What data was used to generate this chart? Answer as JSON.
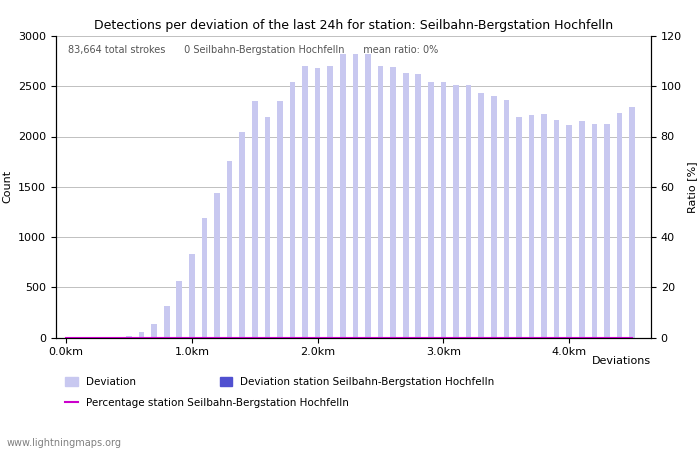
{
  "title": "Detections per deviation of the last 24h for station: Seilbahn-Bergstation Hochfelln",
  "annotation": "83,664 total strokes      0 Seilbahn-Bergstation Hochfelln      mean ratio: 0%",
  "xlabel": "Deviations",
  "ylabel_left": "Count",
  "ylabel_right": "Ratio [%]",
  "ylim_left": [
    0,
    3000
  ],
  "ylim_right": [
    0,
    120
  ],
  "yticks_left": [
    0,
    500,
    1000,
    1500,
    2000,
    2500,
    3000
  ],
  "yticks_right": [
    0,
    20,
    40,
    60,
    80,
    100,
    120
  ],
  "bar_width": 0.045,
  "x_km": [
    0.0,
    0.1,
    0.2,
    0.3,
    0.4,
    0.5,
    0.6,
    0.7,
    0.8,
    0.9,
    1.0,
    1.1,
    1.2,
    1.3,
    1.4,
    1.5,
    1.6,
    1.7,
    1.8,
    1.9,
    2.0,
    2.1,
    2.2,
    2.3,
    2.4,
    2.5,
    2.6,
    2.7,
    2.8,
    2.9,
    3.0,
    3.1,
    3.2,
    3.3,
    3.4,
    3.5,
    3.6,
    3.7,
    3.8,
    3.9,
    4.0,
    4.1,
    4.2,
    4.3,
    4.4,
    4.5
  ],
  "counts_deviation": [
    0,
    0,
    0,
    0,
    0,
    10,
    50,
    130,
    310,
    560,
    830,
    1190,
    1440,
    1760,
    2040,
    2350,
    2190,
    2350,
    2540,
    2700,
    2680,
    2700,
    2820,
    2820,
    2820,
    2700,
    2690,
    2630,
    2620,
    2540,
    2540,
    2510,
    2510,
    2430,
    2400,
    2360,
    2190,
    2210,
    2220,
    2160,
    2110,
    2150,
    2120,
    2120,
    2230,
    2290
  ],
  "counts_station": [
    0,
    0,
    0,
    0,
    0,
    0,
    0,
    0,
    0,
    0,
    0,
    0,
    0,
    0,
    0,
    0,
    0,
    0,
    0,
    0,
    0,
    0,
    0,
    0,
    0,
    0,
    0,
    0,
    0,
    0,
    0,
    0,
    0,
    0,
    0,
    0,
    0,
    0,
    0,
    0,
    0,
    0,
    0,
    0,
    0,
    0
  ],
  "percentage": [
    0,
    0,
    0,
    0,
    0,
    0,
    0,
    0,
    0,
    0,
    0,
    0,
    0,
    0,
    0,
    0,
    0,
    0,
    0,
    0,
    0,
    0,
    0,
    0,
    0,
    0,
    0,
    0,
    0,
    0,
    0,
    0,
    0,
    0,
    0,
    0,
    0,
    0,
    0,
    0,
    0,
    0,
    0,
    0,
    0,
    0
  ],
  "color_deviation": "#c8c8f0",
  "color_station": "#5050d0",
  "color_percentage": "#cc00cc",
  "xtick_positions": [
    0.0,
    1.0,
    2.0,
    3.0,
    4.0
  ],
  "xtick_labels": [
    "0.0km",
    "1.0km",
    "2.0km",
    "3.0km",
    "4.0km"
  ],
  "grid_color": "#c0c0c0",
  "bg_color": "#ffffff",
  "watermark": "www.lightningmaps.org",
  "legend_deviation": "Deviation",
  "legend_station": "Deviation station Seilbahn-Bergstation Hochfelln",
  "legend_percentage": "Percentage station Seilbahn-Bergstation Hochfelln"
}
